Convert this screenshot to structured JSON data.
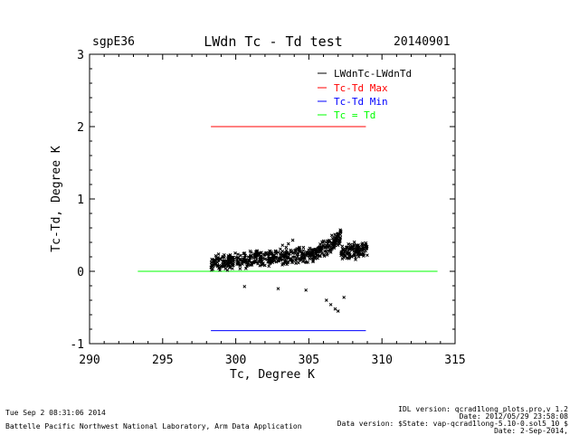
{
  "header": {
    "site": "sgpE36",
    "title": "LWdn Tc - Td test",
    "date": "20140901"
  },
  "chart_data": {
    "type": "scatter",
    "title": "LWdn Tc - Td test",
    "xlabel": "Tc, Degree K",
    "ylabel": "Tc-Td, Degree K",
    "xlim": [
      290,
      315
    ],
    "ylim": [
      -1,
      3
    ],
    "x_ticks": [
      290,
      295,
      300,
      305,
      310,
      315
    ],
    "y_ticks": [
      -1,
      0,
      1,
      2,
      3
    ],
    "legend_position": "top-right",
    "series": [
      {
        "name": "LWdnTc-LWdnTd",
        "color": "#000000",
        "kind": "points",
        "cluster": {
          "x_range": [
            298.3,
            309.0
          ],
          "y_center_start": 0.12,
          "y_center_end": 0.3,
          "spread": 0.1
        },
        "outliers": [
          {
            "x": 303.6,
            "y": 0.38
          },
          {
            "x": 303.9,
            "y": 0.43
          },
          {
            "x": 303.2,
            "y": 0.36
          },
          {
            "x": 306.8,
            "y": -0.52
          },
          {
            "x": 307.0,
            "y": -0.55
          },
          {
            "x": 306.2,
            "y": -0.4
          },
          {
            "x": 302.9,
            "y": -0.24
          },
          {
            "x": 304.8,
            "y": -0.26
          },
          {
            "x": 300.6,
            "y": -0.21
          },
          {
            "x": 307.4,
            "y": -0.36
          },
          {
            "x": 306.5,
            "y": -0.46
          }
        ]
      },
      {
        "name": "Tc-Td Max",
        "color": "#ff0000",
        "kind": "line",
        "x": [
          298.3,
          308.9
        ],
        "y": [
          2.0,
          2.0
        ]
      },
      {
        "name": "Tc-Td Min",
        "color": "#0000ff",
        "kind": "line",
        "x": [
          298.3,
          308.9
        ],
        "y": [
          -0.82,
          -0.82
        ]
      },
      {
        "name": "Tc = Td",
        "color": "#00ff00",
        "kind": "line",
        "x": [
          293.3,
          313.8
        ],
        "y": [
          0.0,
          0.0
        ]
      }
    ]
  },
  "footer": {
    "timestamp": "Tue Sep  2 08:31:06 2014",
    "org": "Battelle Pacific Northwest National Laboratory, Arm Data Application",
    "idl_version": "IDL version: qcrad1long_plots.pro,v 1.2",
    "idl_date": "Date: 2012/05/29 23:58:08",
    "data_version": "Data version: $State: vap-qcrad1long-5.10-0.sol5_10 $",
    "data_date": "Date: 2-Sep-2014,"
  }
}
